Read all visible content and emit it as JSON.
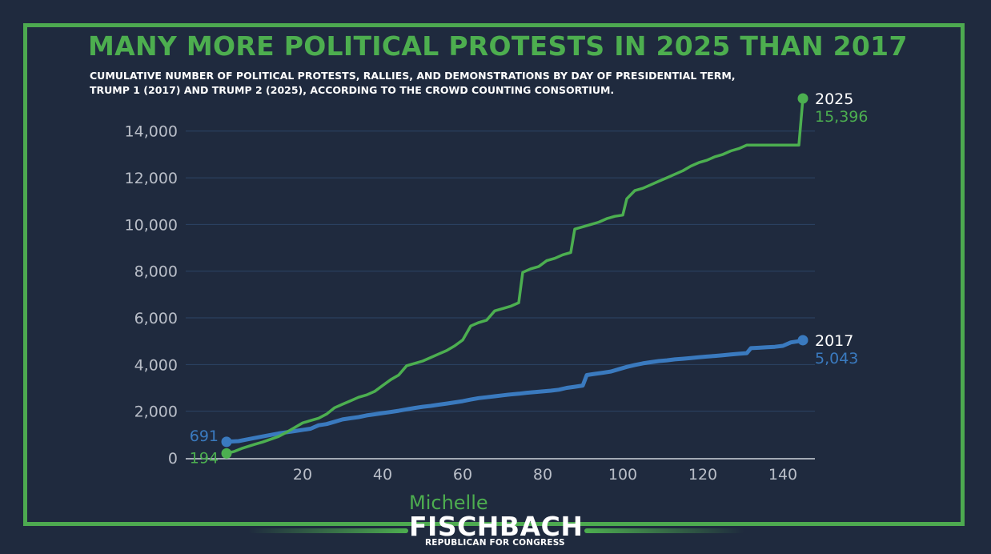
{
  "title": "MANY MORE POLITICAL PROTESTS IN 2025 THAN 2017",
  "subtitle_line1": "CUMULATIVE NUMBER OF POLITICAL PROTESTS, RALLIES, AND DEMONSTRATIONS BY DAY OF PRESIDENTIAL TERM,",
  "subtitle_line2": "TRUMP 1 (2017) AND TRUMP 2 (2025), ACCORDING TO THE CROWD COUNTING CONSORTIUM.",
  "brand": {
    "first_name": "Michelle",
    "last_name": "FISCHBACH",
    "tagline": "REPUBLICAN FOR CONGRESS"
  },
  "colors": {
    "background": "#1f2a3e",
    "accent_green": "#4dae4f",
    "series_2025": "#4caf50",
    "series_2017": "#3a7abf",
    "grid": "#2c4466",
    "tick_text": "#b9bec8"
  },
  "chart_data": {
    "type": "line",
    "xlim": [
      -10,
      148
    ],
    "ylim": [
      0,
      15500
    ],
    "x_ticks": [
      20,
      40,
      60,
      80,
      100,
      120,
      140
    ],
    "y_ticks": [
      0,
      2000,
      4000,
      6000,
      8000,
      10000,
      12000,
      14000
    ],
    "y_tick_labels": [
      "0",
      "2,000",
      "4,000",
      "6,000",
      "8,000",
      "10,000",
      "12,000",
      "14,000"
    ],
    "grid": "horizontal",
    "series": [
      {
        "name": "2025",
        "end_label": "15,396",
        "start_label": "194",
        "points": [
          [
            1,
            194
          ],
          [
            3,
            280
          ],
          [
            5,
            420
          ],
          [
            8,
            580
          ],
          [
            10,
            680
          ],
          [
            12,
            800
          ],
          [
            14,
            920
          ],
          [
            16,
            1100
          ],
          [
            18,
            1300
          ],
          [
            20,
            1500
          ],
          [
            22,
            1600
          ],
          [
            24,
            1700
          ],
          [
            26,
            1880
          ],
          [
            28,
            2150
          ],
          [
            30,
            2300
          ],
          [
            32,
            2450
          ],
          [
            34,
            2600
          ],
          [
            36,
            2700
          ],
          [
            38,
            2850
          ],
          [
            40,
            3100
          ],
          [
            42,
            3350
          ],
          [
            44,
            3550
          ],
          [
            46,
            3950
          ],
          [
            48,
            4050
          ],
          [
            50,
            4150
          ],
          [
            52,
            4300
          ],
          [
            54,
            4450
          ],
          [
            56,
            4600
          ],
          [
            58,
            4800
          ],
          [
            60,
            5050
          ],
          [
            62,
            5650
          ],
          [
            64,
            5800
          ],
          [
            66,
            5900
          ],
          [
            68,
            6300
          ],
          [
            70,
            6400
          ],
          [
            72,
            6500
          ],
          [
            74,
            6650
          ],
          [
            75,
            7950
          ],
          [
            77,
            8100
          ],
          [
            79,
            8200
          ],
          [
            81,
            8450
          ],
          [
            83,
            8550
          ],
          [
            85,
            8700
          ],
          [
            87,
            8800
          ],
          [
            88,
            9800
          ],
          [
            90,
            9900
          ],
          [
            92,
            10000
          ],
          [
            94,
            10100
          ],
          [
            96,
            10250
          ],
          [
            98,
            10350
          ],
          [
            100,
            10400
          ],
          [
            101,
            11100
          ],
          [
            103,
            11450
          ],
          [
            105,
            11550
          ],
          [
            107,
            11700
          ],
          [
            109,
            11850
          ],
          [
            111,
            12000
          ],
          [
            113,
            12150
          ],
          [
            115,
            12300
          ],
          [
            117,
            12500
          ],
          [
            119,
            12650
          ],
          [
            121,
            12750
          ],
          [
            123,
            12900
          ],
          [
            125,
            13000
          ],
          [
            127,
            13150
          ],
          [
            129,
            13250
          ],
          [
            131,
            13400
          ],
          [
            133,
            13400
          ],
          [
            138,
            13400
          ],
          [
            144,
            13400
          ],
          [
            145,
            15396
          ]
        ]
      },
      {
        "name": "2017",
        "end_label": "5,043",
        "start_label": "691",
        "points": [
          [
            1,
            691
          ],
          [
            4,
            720
          ],
          [
            7,
            820
          ],
          [
            10,
            920
          ],
          [
            14,
            1050
          ],
          [
            18,
            1150
          ],
          [
            22,
            1250
          ],
          [
            24,
            1400
          ],
          [
            26,
            1450
          ],
          [
            28,
            1550
          ],
          [
            30,
            1650
          ],
          [
            32,
            1700
          ],
          [
            34,
            1750
          ],
          [
            36,
            1820
          ],
          [
            38,
            1870
          ],
          [
            40,
            1920
          ],
          [
            42,
            1970
          ],
          [
            44,
            2020
          ],
          [
            46,
            2080
          ],
          [
            48,
            2140
          ],
          [
            50,
            2190
          ],
          [
            52,
            2230
          ],
          [
            54,
            2280
          ],
          [
            56,
            2330
          ],
          [
            58,
            2380
          ],
          [
            60,
            2430
          ],
          [
            62,
            2500
          ],
          [
            64,
            2560
          ],
          [
            66,
            2600
          ],
          [
            68,
            2640
          ],
          [
            70,
            2680
          ],
          [
            72,
            2720
          ],
          [
            74,
            2750
          ],
          [
            76,
            2790
          ],
          [
            78,
            2820
          ],
          [
            80,
            2850
          ],
          [
            82,
            2880
          ],
          [
            84,
            2920
          ],
          [
            86,
            3000
          ],
          [
            88,
            3050
          ],
          [
            90,
            3100
          ],
          [
            91,
            3550
          ],
          [
            93,
            3600
          ],
          [
            95,
            3650
          ],
          [
            97,
            3700
          ],
          [
            99,
            3800
          ],
          [
            101,
            3900
          ],
          [
            103,
            3980
          ],
          [
            105,
            4050
          ],
          [
            107,
            4100
          ],
          [
            109,
            4150
          ],
          [
            111,
            4180
          ],
          [
            113,
            4220
          ],
          [
            115,
            4250
          ],
          [
            117,
            4280
          ],
          [
            119,
            4310
          ],
          [
            121,
            4340
          ],
          [
            123,
            4370
          ],
          [
            125,
            4400
          ],
          [
            127,
            4430
          ],
          [
            129,
            4460
          ],
          [
            131,
            4490
          ],
          [
            132,
            4700
          ],
          [
            134,
            4720
          ],
          [
            136,
            4740
          ],
          [
            138,
            4760
          ],
          [
            140,
            4800
          ],
          [
            142,
            4950
          ],
          [
            144,
            5000
          ],
          [
            145,
            5043
          ]
        ]
      }
    ]
  }
}
